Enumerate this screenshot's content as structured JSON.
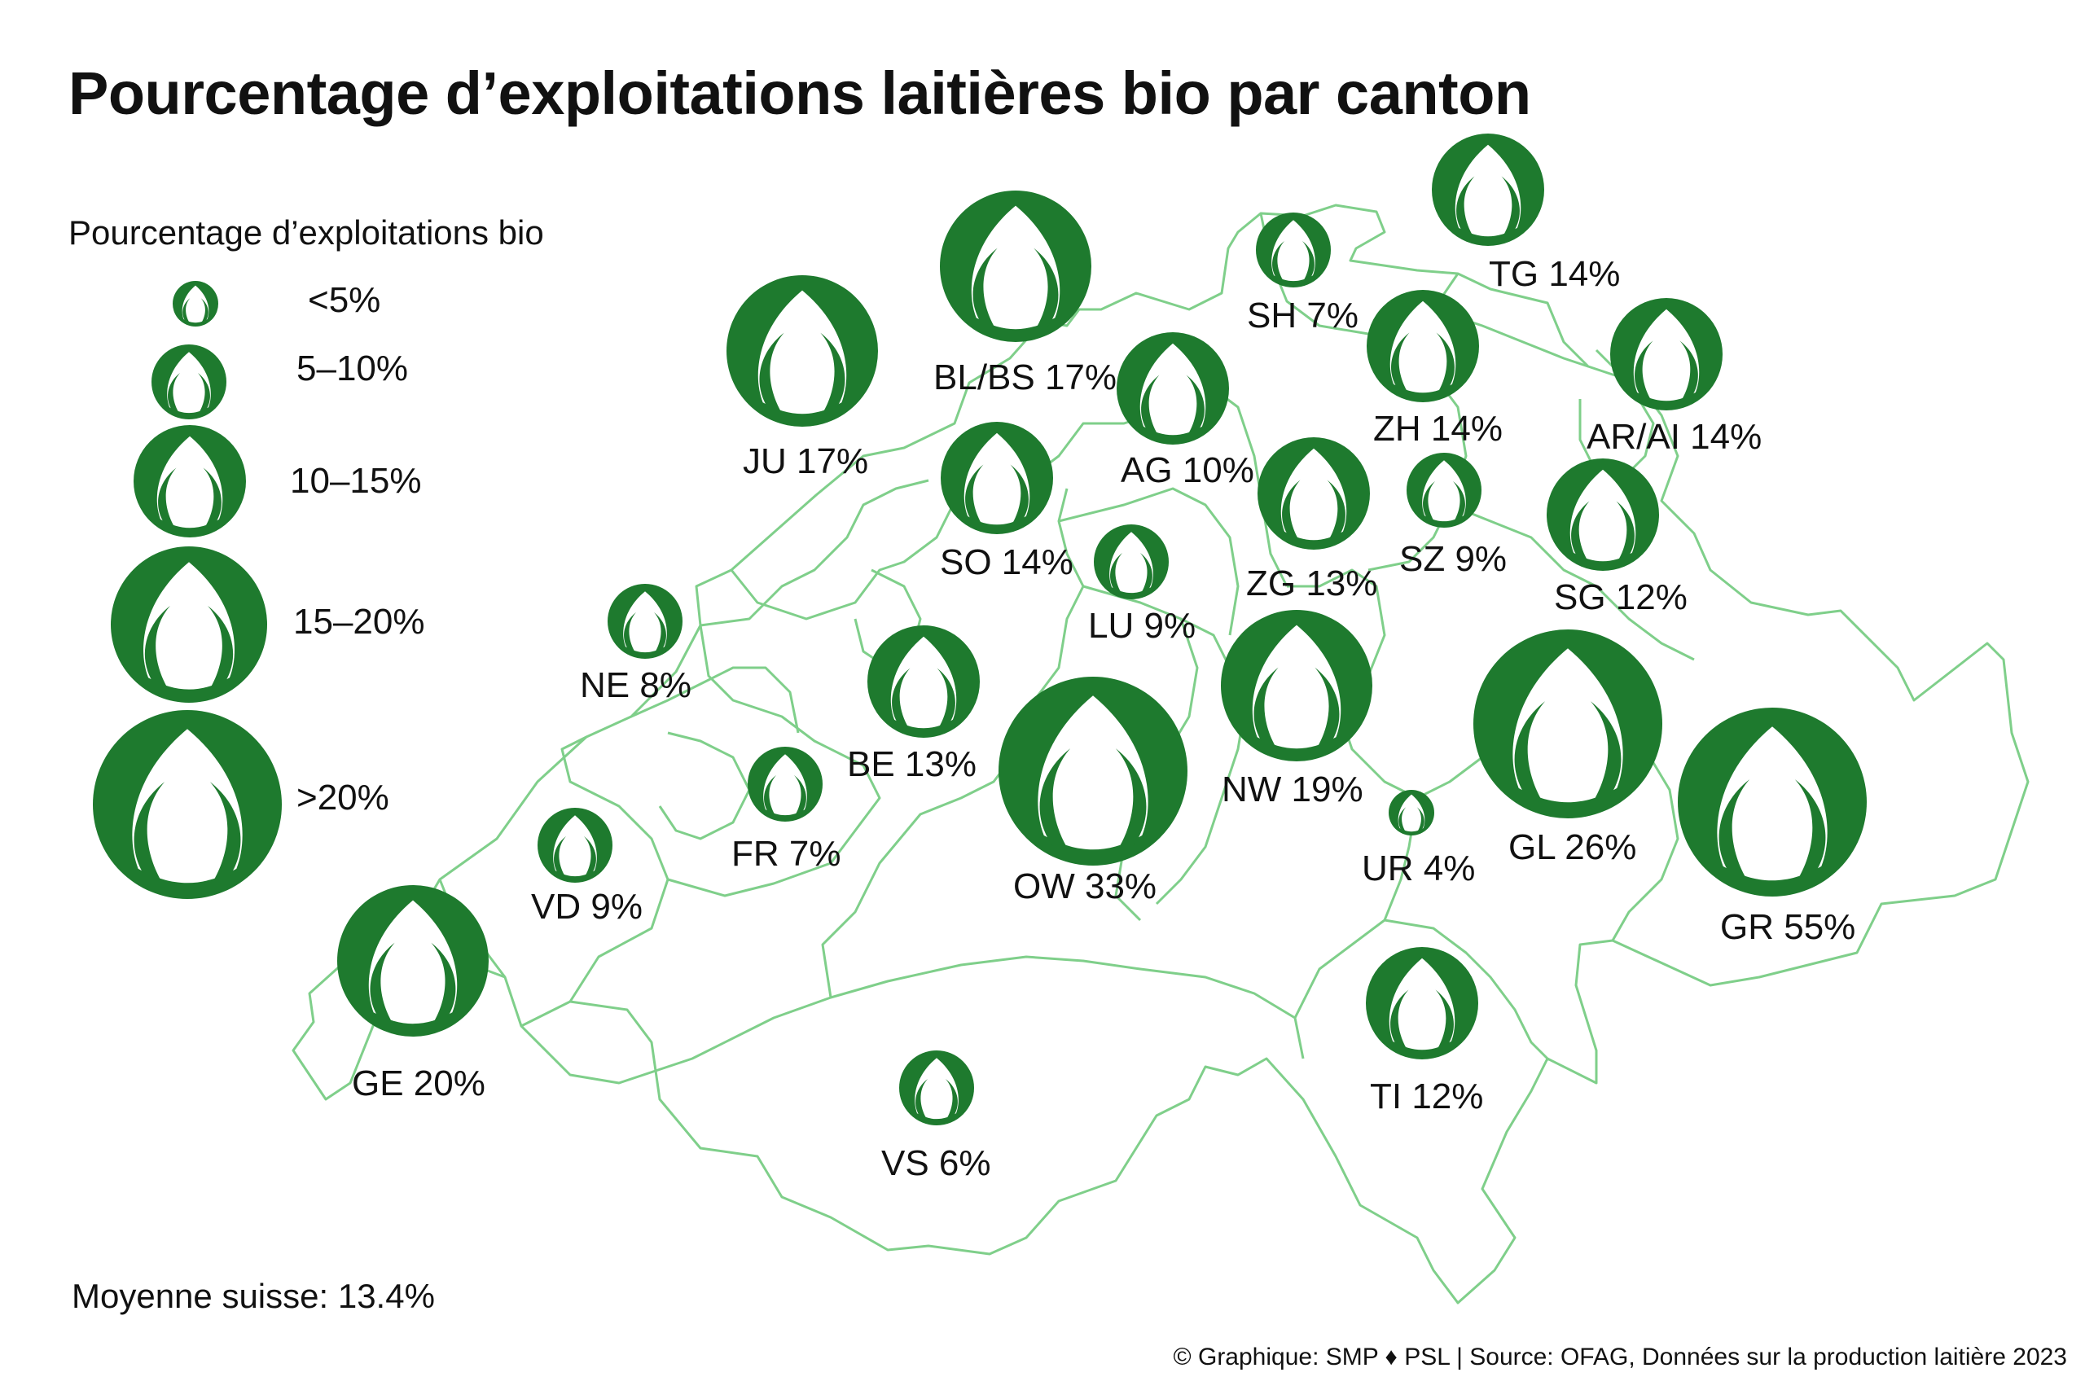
{
  "title": "Pourcentage d’exploitations laitières bio par canton",
  "legend": {
    "title": "Pourcentage d’exploitations bio",
    "classes": [
      {
        "label": "<5%",
        "icon": "bio-bud-icon"
      },
      {
        "label": "5–10%",
        "icon": "bio-bud-icon"
      },
      {
        "label": "10–15%",
        "icon": "bio-bud-icon"
      },
      {
        "label": "15–20%",
        "icon": "bio-bud-icon"
      },
      {
        "label": ">20%",
        "icon": "bio-bud-icon"
      }
    ]
  },
  "cantons": [
    {
      "code": "TG",
      "label": "TG 14%",
      "value": 14
    },
    {
      "code": "SH",
      "label": "SH 7%",
      "value": 7
    },
    {
      "code": "BL/BS",
      "label": "BL/BS 17%",
      "value": 17
    },
    {
      "code": "JU",
      "label": "JU 17%",
      "value": 17
    },
    {
      "code": "ZH",
      "label": "ZH 14%",
      "value": 14
    },
    {
      "code": "AR/AI",
      "label": "AR/AI 14%",
      "value": 14
    },
    {
      "code": "AG",
      "label": "AG 10%",
      "value": 10
    },
    {
      "code": "SO",
      "label": "SO 14%",
      "value": 14
    },
    {
      "code": "ZG",
      "label": "ZG 13%",
      "value": 13
    },
    {
      "code": "SZ",
      "label": "SZ 9%",
      "value": 9
    },
    {
      "code": "SG",
      "label": "SG 12%",
      "value": 12
    },
    {
      "code": "LU",
      "label": "LU 9%",
      "value": 9
    },
    {
      "code": "NE",
      "label": "NE 8%",
      "value": 8
    },
    {
      "code": "BE",
      "label": "BE 13%",
      "value": 13
    },
    {
      "code": "NW",
      "label": "NW 19%",
      "value": 19
    },
    {
      "code": "GL",
      "label": "GL 26%",
      "value": 26
    },
    {
      "code": "FR",
      "label": "FR 7%",
      "value": 7
    },
    {
      "code": "OW",
      "label": "OW 33%",
      "value": 33
    },
    {
      "code": "UR",
      "label": "UR 4%",
      "value": 4
    },
    {
      "code": "GR",
      "label": "GR 55%",
      "value": 55
    },
    {
      "code": "VD",
      "label": "VD 9%",
      "value": 9
    },
    {
      "code": "GE",
      "label": "GE 20%",
      "value": 20
    },
    {
      "code": "TI",
      "label": "TI 12%",
      "value": 12
    },
    {
      "code": "VS",
      "label": "VS 6%",
      "value": 6
    }
  ],
  "average": "Moyenne suisse: 13.4%",
  "credit": "© Graphique: SMP ♦ PSL | Source: OFAG, Données sur la production laitière 2023",
  "colors": {
    "symbol": "#1e7a2e",
    "border": "#7fcf8a",
    "text": "#111111"
  }
}
